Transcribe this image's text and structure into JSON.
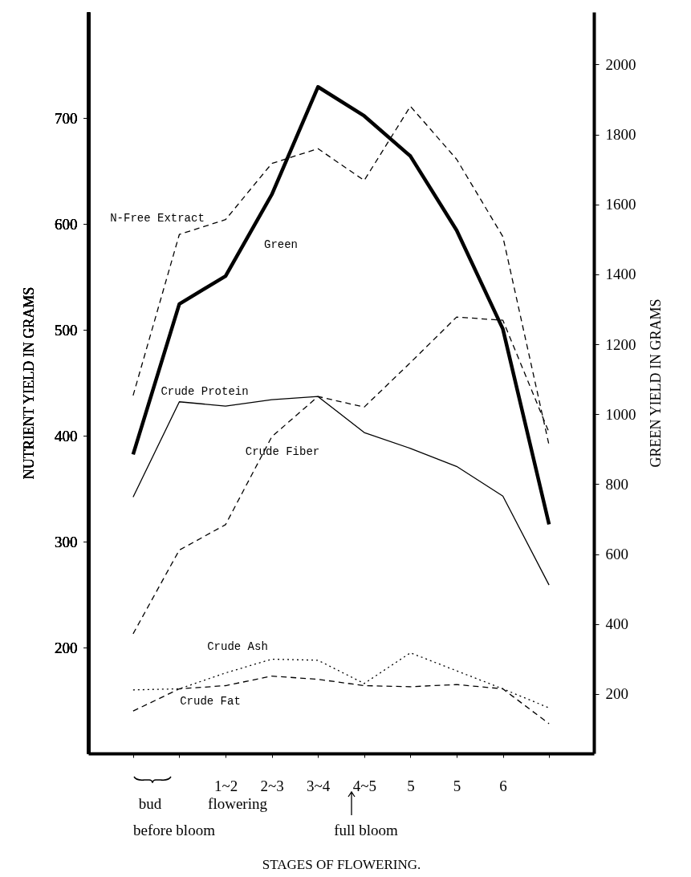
{
  "chart_data": {
    "type": "line",
    "xlabel": "STAGES OF FLOWERING.",
    "ylabel": "NUTRIENT YIELD IN GRAMS",
    "y2label": "GREEN YIELD IN GRAMS",
    "categories": [
      null,
      null,
      "1~2",
      "2~3",
      "3~4",
      "4~5",
      "5",
      "5",
      "6",
      null
    ],
    "series": [
      {
        "name": "Green",
        "color": "#000000",
        "axis": "y2",
        "line_style": "solid",
        "values": [
          885,
          1315,
          1395,
          1628,
          1936,
          1853,
          1738,
          1526,
          1244,
          685
        ]
      },
      {
        "name": "N-Free Extract",
        "color": "#000000",
        "line_style": "dashed",
        "values": [
          438,
          590,
          604,
          657,
          671,
          641,
          711,
          661,
          588,
          391
        ]
      },
      {
        "name": "Crude Protein",
        "color": "#000000",
        "line_style": "solid",
        "values": [
          342,
          432,
          428,
          434,
          437,
          403,
          388,
          371,
          343,
          259
        ]
      },
      {
        "name": "Crude Fiber",
        "color": "#000000",
        "line_style": "dashed",
        "values": [
          213,
          292,
          316,
          399,
          437,
          427,
          469,
          512,
          509,
          403
        ]
      },
      {
        "name": "Crude Ash",
        "color": "#000000",
        "line_style": "dotted",
        "values": [
          160,
          161,
          176,
          189,
          188,
          166,
          195,
          178,
          161,
          143
        ]
      },
      {
        "name": "Crude Fat",
        "color": "#000000",
        "line_style": "dashed",
        "values": [
          140,
          161,
          164,
          173,
          170,
          164,
          163,
          165,
          161,
          128
        ]
      }
    ],
    "ylim": [
      100,
      800
    ],
    "yticks": [
      200,
      300,
      400,
      500,
      600,
      700
    ],
    "y2lim": [
      30,
      2150
    ],
    "y2ticks": [
      200,
      400,
      600,
      800,
      1000,
      1200,
      1400,
      1600,
      1800,
      2000
    ],
    "annotations": [
      "bud",
      "flowering",
      "before bloom",
      "full bloom"
    ],
    "grid": false,
    "marker": "none"
  }
}
